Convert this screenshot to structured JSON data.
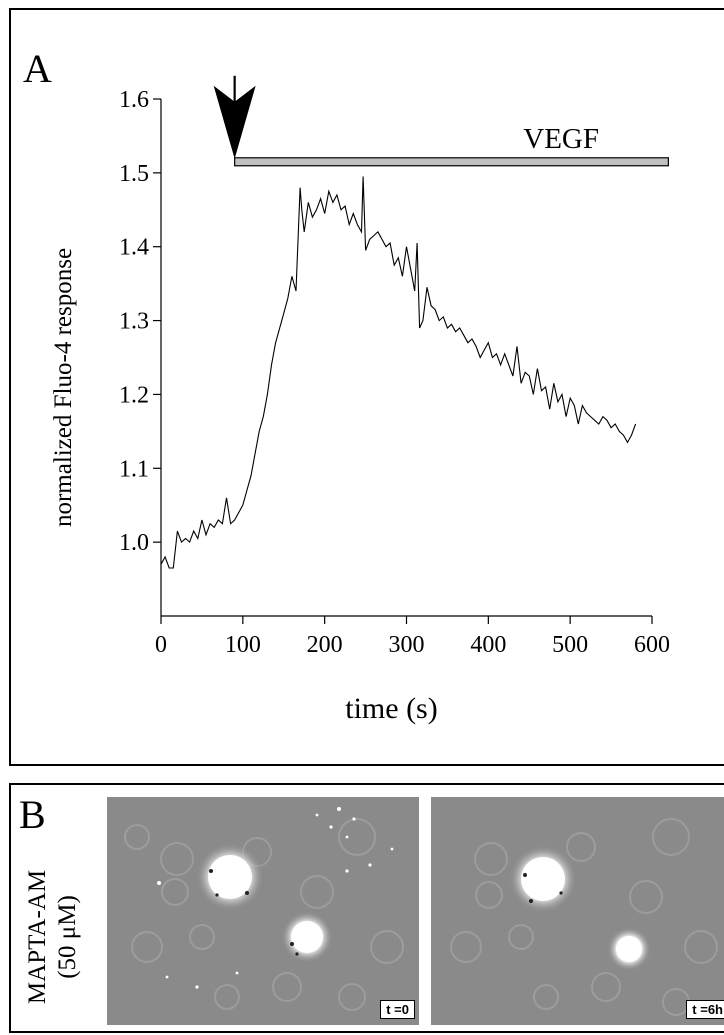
{
  "panel_a": {
    "letter": "A",
    "annotation": "VEGF"
  },
  "panel_b": {
    "letter": "B",
    "label_line1": "MAPTA-AM",
    "label_line2": "(50 μM)",
    "images": [
      {
        "timestamp": "t =0"
      },
      {
        "timestamp": "t =6h"
      }
    ]
  },
  "chart_data": {
    "type": "line",
    "title": "",
    "xlabel": "time (s)",
    "ylabel": "normalized Fluo-4 response",
    "xlim": [
      0,
      600
    ],
    "ylim": [
      0.9,
      1.6
    ],
    "xticks": [
      0,
      100,
      200,
      300,
      400,
      500,
      600
    ],
    "yticks": [
      1.0,
      1.1,
      1.2,
      1.3,
      1.4,
      1.5,
      1.6
    ],
    "grid": false,
    "stimulus": {
      "label": "VEGF",
      "start": 90,
      "end": 620,
      "y": 1.515
    },
    "series": [
      {
        "x": [
          0,
          5,
          10,
          15,
          20,
          25,
          30,
          35,
          40,
          45,
          50,
          55,
          60,
          65,
          70,
          75,
          80,
          85,
          90,
          95,
          100,
          105,
          110,
          115,
          120,
          125,
          130,
          135,
          140,
          145,
          150,
          155,
          160,
          165,
          170,
          172,
          175,
          180,
          185,
          190,
          195,
          200,
          205,
          210,
          215,
          220,
          225,
          230,
          235,
          240,
          245,
          247,
          250,
          255,
          260,
          265,
          270,
          275,
          280,
          285,
          290,
          295,
          300,
          305,
          310,
          313,
          316,
          320,
          325,
          330,
          335,
          340,
          345,
          350,
          355,
          360,
          365,
          370,
          375,
          380,
          385,
          390,
          395,
          400,
          405,
          410,
          415,
          420,
          425,
          430,
          435,
          440,
          445,
          450,
          455,
          460,
          465,
          470,
          475,
          480,
          485,
          490,
          495,
          500,
          505,
          510,
          515,
          520,
          525,
          530,
          535,
          540,
          545,
          550,
          555,
          560,
          565,
          570,
          575,
          580
        ],
        "values": [
          0.97,
          0.98,
          0.965,
          0.965,
          1.015,
          1.0,
          1.005,
          1.0,
          1.015,
          1.005,
          1.03,
          1.01,
          1.025,
          1.02,
          1.03,
          1.025,
          1.06,
          1.025,
          1.03,
          1.04,
          1.05,
          1.07,
          1.09,
          1.12,
          1.15,
          1.17,
          1.2,
          1.24,
          1.27,
          1.29,
          1.31,
          1.33,
          1.36,
          1.34,
          1.48,
          1.45,
          1.42,
          1.46,
          1.44,
          1.45,
          1.465,
          1.445,
          1.475,
          1.46,
          1.47,
          1.45,
          1.455,
          1.43,
          1.445,
          1.43,
          1.42,
          1.495,
          1.395,
          1.41,
          1.415,
          1.42,
          1.41,
          1.4,
          1.405,
          1.375,
          1.385,
          1.36,
          1.4,
          1.37,
          1.34,
          1.405,
          1.29,
          1.3,
          1.345,
          1.32,
          1.315,
          1.3,
          1.305,
          1.29,
          1.295,
          1.285,
          1.29,
          1.28,
          1.27,
          1.275,
          1.265,
          1.25,
          1.26,
          1.27,
          1.25,
          1.255,
          1.24,
          1.255,
          1.24,
          1.225,
          1.265,
          1.215,
          1.23,
          1.225,
          1.2,
          1.235,
          1.205,
          1.21,
          1.18,
          1.215,
          1.19,
          1.2,
          1.17,
          1.195,
          1.185,
          1.16,
          1.185,
          1.175,
          1.17,
          1.165,
          1.16,
          1.17,
          1.165,
          1.155,
          1.16,
          1.15,
          1.145,
          1.135,
          1.145,
          1.16
        ]
      }
    ]
  }
}
